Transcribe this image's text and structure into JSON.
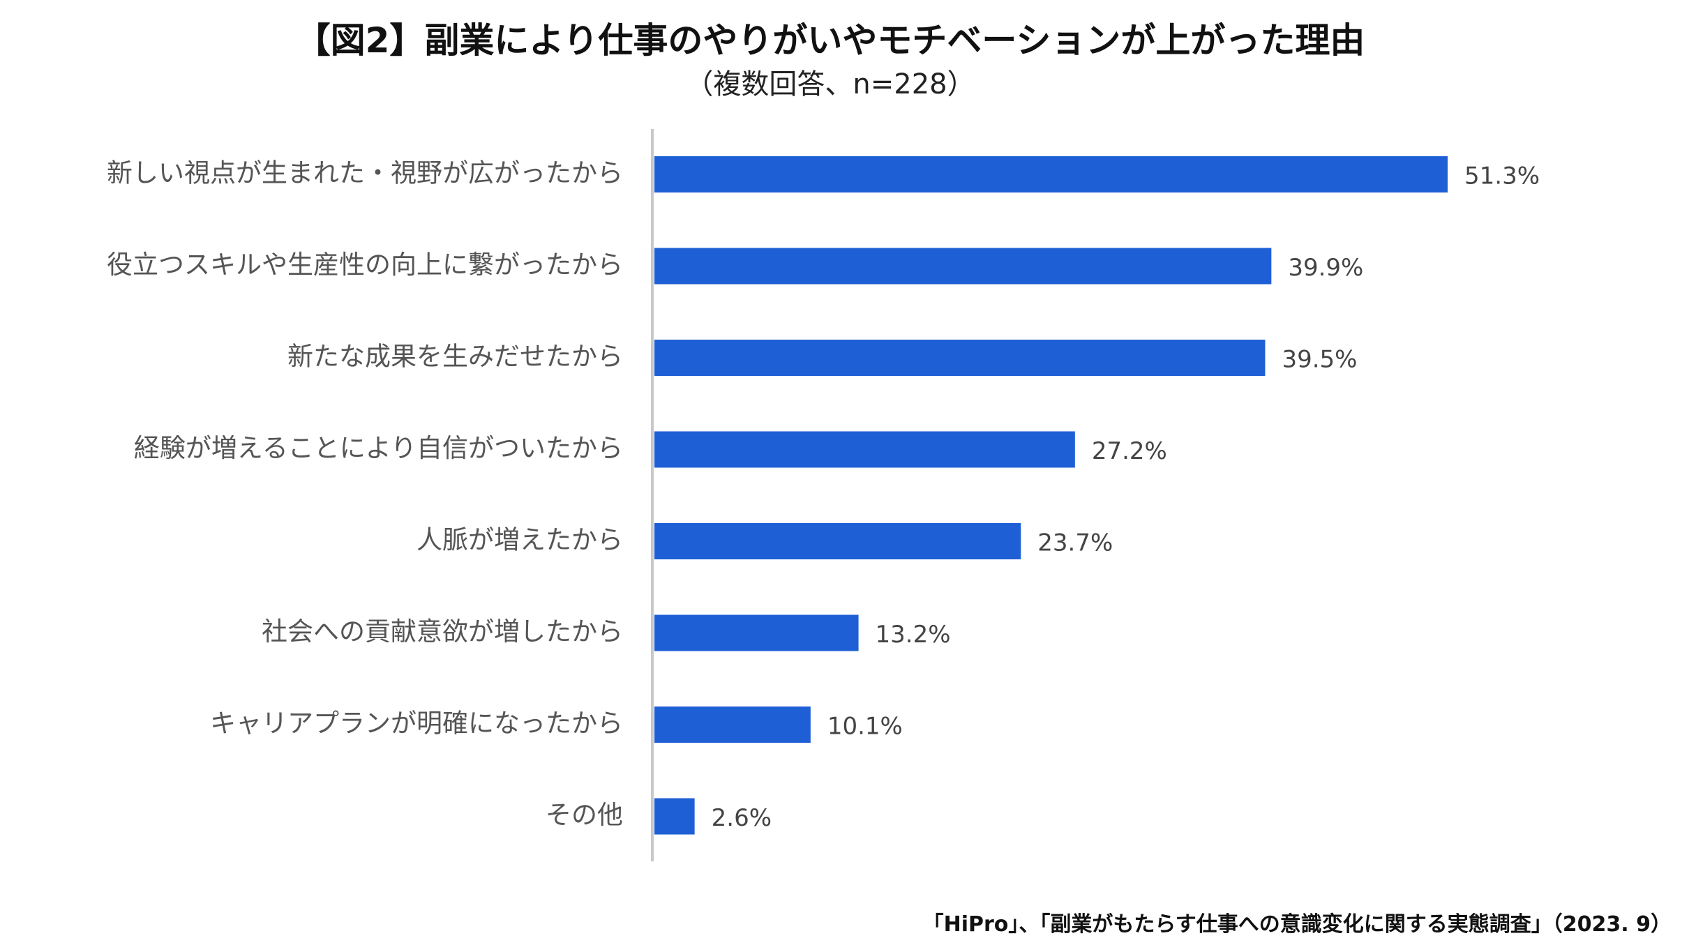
{
  "chart_data": {
    "type": "bar",
    "orientation": "horizontal",
    "title": "【図2】副業により仕事のやりがいやモチベーションが上がった理由",
    "subtitle": "（複数回答、n=228）",
    "categories": [
      "新しい視点が生まれた・視野が広がったから",
      "役立つスキルや生産性の向上に繋がったから",
      "新たな成果を生みだせたから",
      "経験が増えることにより自信がついたから",
      "人脈が増えたから",
      "社会への貢献意欲が増したから",
      "キャリアプランが明確になったから",
      "その他"
    ],
    "values": [
      51.3,
      39.9,
      39.5,
      27.2,
      23.7,
      13.2,
      10.1,
      2.6
    ],
    "value_labels": [
      "51.3%",
      "39.9%",
      "39.5%",
      "27.2%",
      "23.7%",
      "13.2%",
      "10.1%",
      "2.6%"
    ],
    "unit": "%",
    "xlim": [
      0,
      60
    ],
    "grid": false,
    "bar_color": "#1f5fd6",
    "axis_color": "#c8c8c8"
  },
  "source": "「HiPro」、「副業がもたらす仕事への意識変化に関する実態調査」（2023. 9）"
}
